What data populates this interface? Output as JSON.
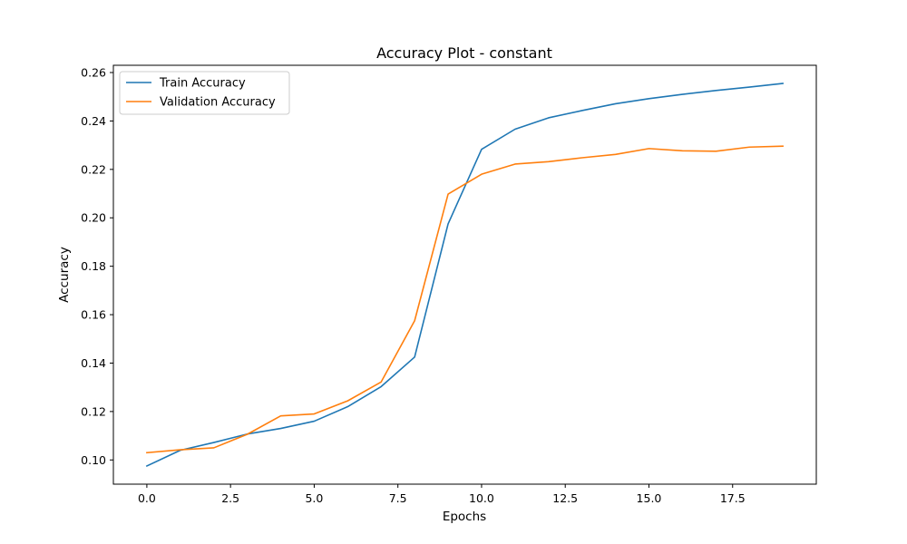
{
  "chart_data": {
    "type": "line",
    "title": "Accuracy Plot - constant",
    "xlabel": "Epochs",
    "ylabel": "Accuracy",
    "xlim": [
      -1,
      20
    ],
    "ylim": [
      0.09,
      0.263
    ],
    "x_ticks": [
      0.0,
      2.5,
      5.0,
      7.5,
      10.0,
      12.5,
      15.0,
      17.5
    ],
    "x_tick_labels": [
      "0.0",
      "2.5",
      "5.0",
      "7.5",
      "10.0",
      "12.5",
      "15.0",
      "17.5"
    ],
    "y_ticks": [
      0.1,
      0.12,
      0.14,
      0.16,
      0.18,
      0.2,
      0.22,
      0.24,
      0.26
    ],
    "y_tick_labels": [
      "0.10",
      "0.12",
      "0.14",
      "0.16",
      "0.18",
      "0.20",
      "0.22",
      "0.24",
      "0.26"
    ],
    "grid": false,
    "legend_position": "upper-left",
    "x": [
      0,
      1,
      2,
      3,
      4,
      5,
      6,
      7,
      8,
      9,
      10,
      11,
      12,
      13,
      14,
      15,
      16,
      17,
      18,
      19
    ],
    "series": [
      {
        "name": "Train Accuracy",
        "color": "#1f77b4",
        "values": [
          0.0975,
          0.104,
          0.1072,
          0.1107,
          0.113,
          0.116,
          0.122,
          0.1303,
          0.1425,
          0.1975,
          0.2283,
          0.2366,
          0.2413,
          0.2443,
          0.2471,
          0.2492,
          0.251,
          0.2526,
          0.254,
          0.2555
        ]
      },
      {
        "name": "Validation Accuracy",
        "color": "#ff7f0e",
        "values": [
          0.103,
          0.1042,
          0.105,
          0.1106,
          0.1182,
          0.119,
          0.1244,
          0.1322,
          0.1575,
          0.2098,
          0.218,
          0.2222,
          0.2232,
          0.2248,
          0.2262,
          0.2286,
          0.2277,
          0.2275,
          0.2292,
          0.2296
        ]
      }
    ]
  }
}
